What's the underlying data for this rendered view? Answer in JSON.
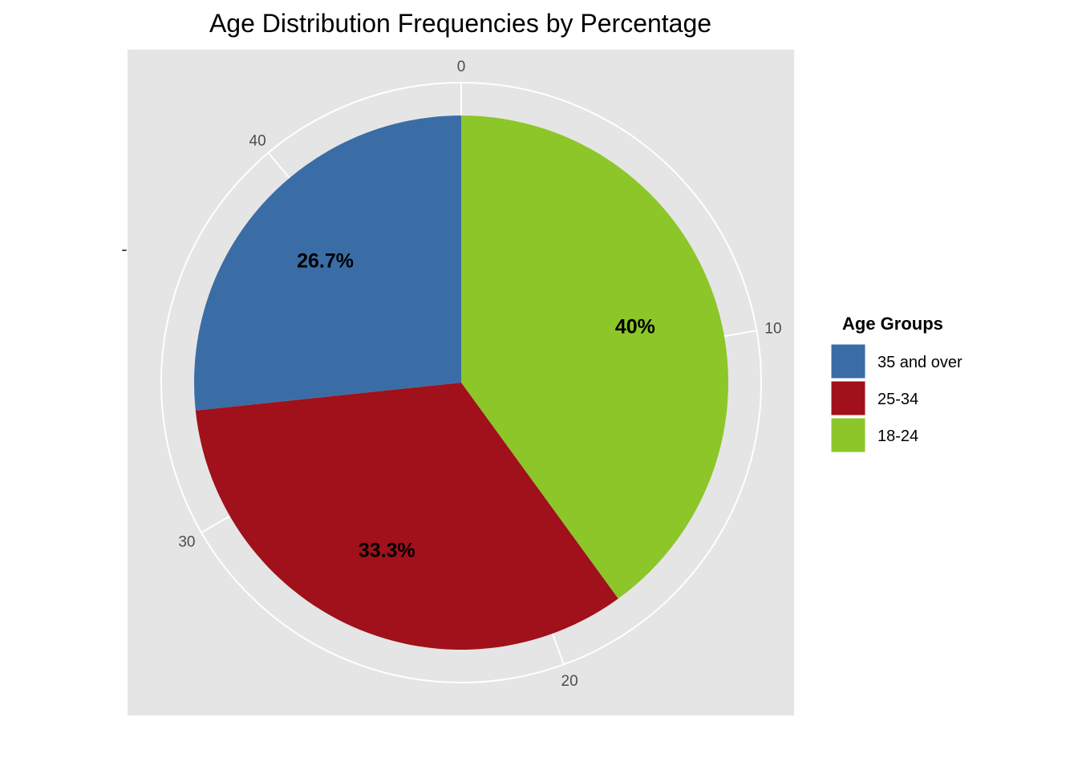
{
  "chart_data": {
    "type": "pie",
    "title": "Age Distribution Frequencies by Percentage",
    "xlabel": "",
    "ylabel": "",
    "ylabel_tick": "-",
    "legend": {
      "title": "Age Groups",
      "placement": "right",
      "order": [
        "35 and over",
        "25-34",
        "18-24"
      ]
    },
    "slices": [
      {
        "name": "18-24",
        "value": 18,
        "label": "40%",
        "color": "#8CC629"
      },
      {
        "name": "25-34",
        "value": 15,
        "label": "33.3%",
        "color": "#A0111B"
      },
      {
        "name": "35 and over",
        "value": 12,
        "label": "26.7%",
        "color": "#3A6DA6"
      }
    ],
    "angular_axis": {
      "range": [
        0,
        45
      ],
      "ticks": [
        0,
        10,
        20,
        30,
        40
      ],
      "tick_labels": [
        "0",
        "10",
        "20",
        "30",
        "40"
      ]
    },
    "colors": {
      "panel_background": "#E5E5E5",
      "grid": "#FFFFFF"
    }
  }
}
